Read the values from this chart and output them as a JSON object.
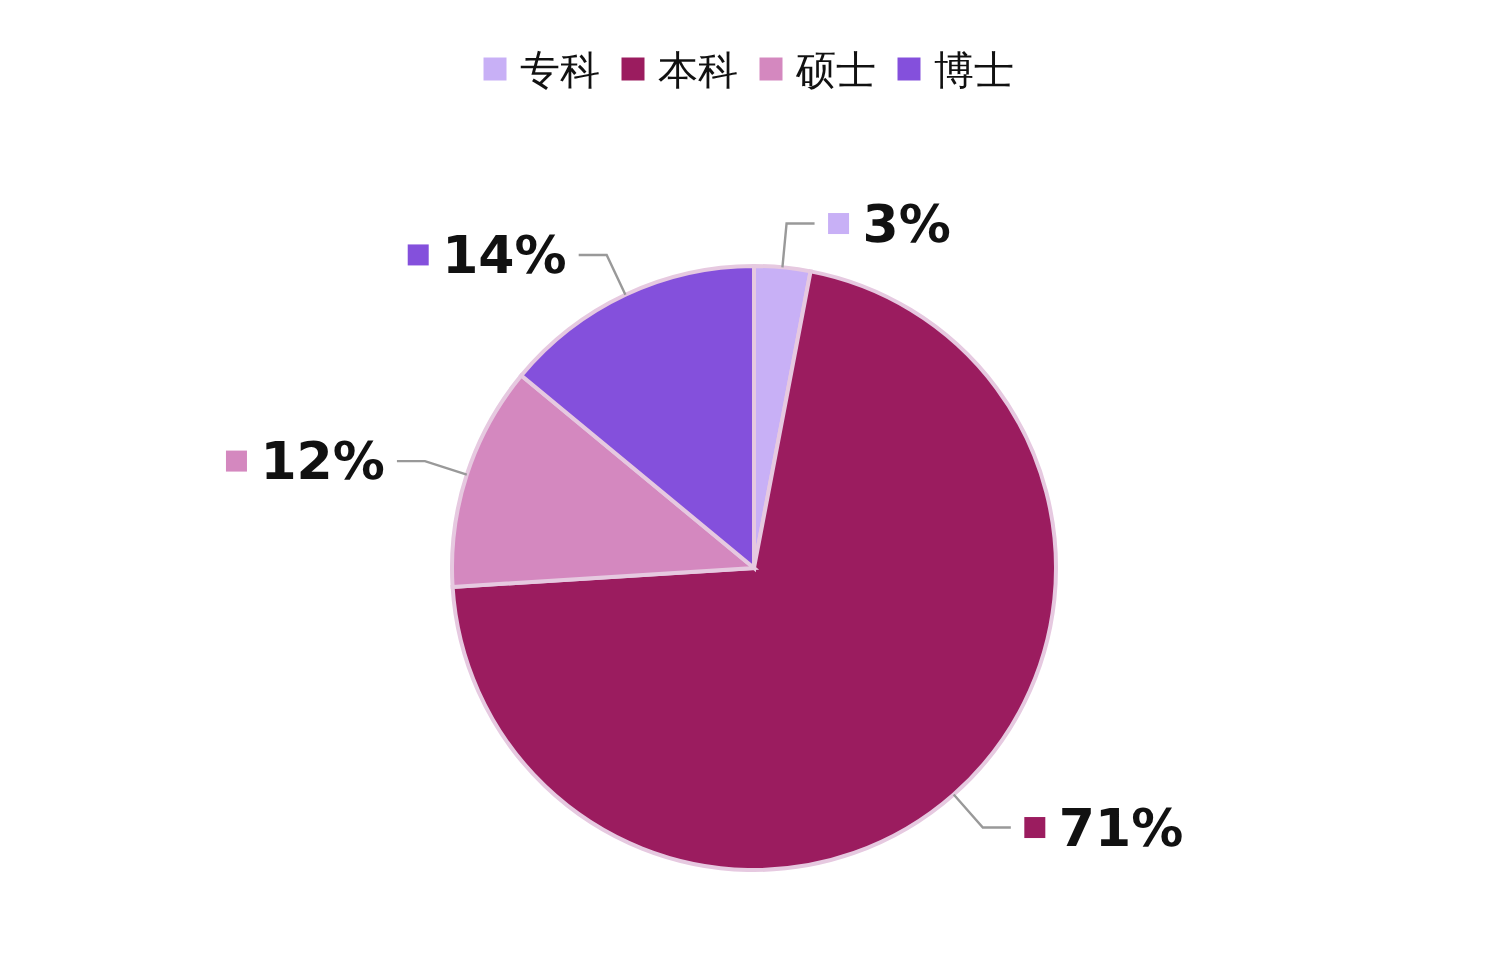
{
  "chart_data": {
    "type": "pie",
    "categories": [
      "专科",
      "本科",
      "硕士",
      "博士"
    ],
    "values": [
      3,
      71,
      12,
      14
    ],
    "colors": [
      "#c8b0f6",
      "#9b1c5f",
      "#d488bf",
      "#8450dc"
    ],
    "value_labels": [
      "3%",
      "71%",
      "12%",
      "14%"
    ],
    "legend": "top"
  }
}
